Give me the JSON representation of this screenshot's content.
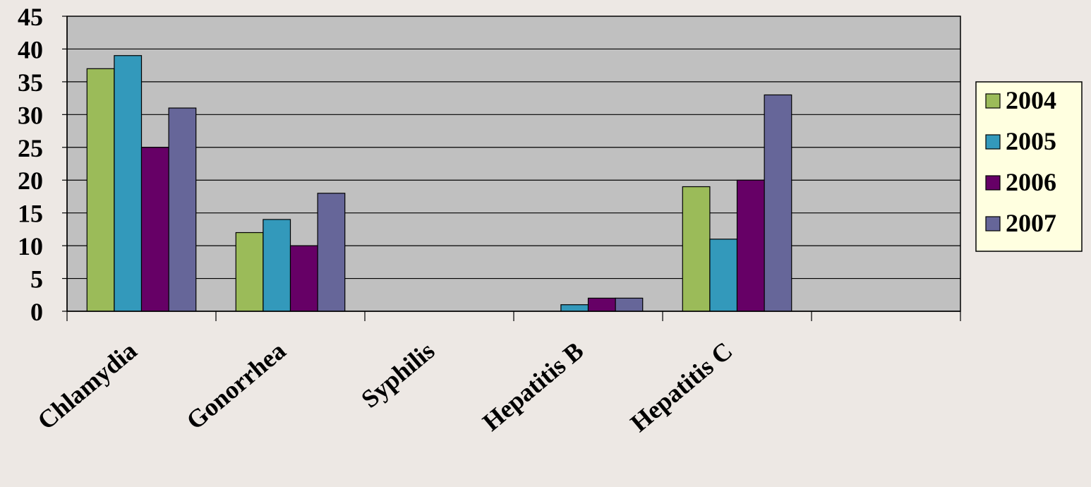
{
  "chart_data": {
    "type": "bar",
    "title": "",
    "xlabel": "",
    "ylabel": "",
    "categories": [
      "Chlamydia",
      "Gonorrhea",
      "Syphilis",
      "Hepatitis B",
      "Hepatitis C",
      ""
    ],
    "series": [
      {
        "name": "2004",
        "color": "#9bbb59",
        "values": [
          37,
          12,
          0,
          0,
          19,
          0
        ]
      },
      {
        "name": "2005",
        "color": "#3399bb",
        "values": [
          39,
          14,
          0,
          1,
          11,
          0
        ]
      },
      {
        "name": "2006",
        "color": "#660066",
        "values": [
          25,
          10,
          0,
          2,
          20,
          0
        ]
      },
      {
        "name": "2007",
        "color": "#666699",
        "values": [
          31,
          18,
          0,
          2,
          33,
          0
        ]
      }
    ],
    "ylim": [
      0,
      45
    ],
    "yticks": [
      "0",
      "5",
      "10",
      "15",
      "20",
      "25",
      "30",
      "35",
      "40",
      "45"
    ],
    "grid": true,
    "legend_position": "right",
    "plot_background": "#c0c0c0",
    "page_background": "#ede8e4"
  }
}
